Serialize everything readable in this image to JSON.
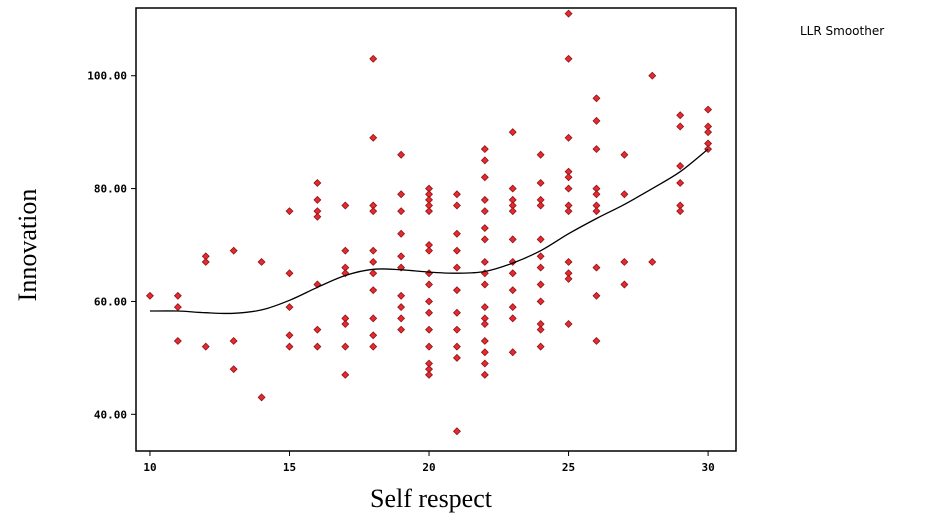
{
  "chart_data": {
    "type": "scatter",
    "title": "",
    "xlabel": "Self respect",
    "ylabel": "Innovation",
    "xlim": [
      9.5,
      31.0
    ],
    "ylim": [
      33.5,
      112.0
    ],
    "x_ticks": [
      10,
      15,
      20,
      25,
      30
    ],
    "x_tick_labels": [
      "10",
      "15",
      "20",
      "25",
      "30"
    ],
    "y_ticks": [
      40,
      60,
      80,
      100
    ],
    "y_tick_labels": [
      "40.00",
      "60.00",
      "80.00",
      "100.00"
    ],
    "legend": {
      "label": "LLR Smoother",
      "placement": "top-right"
    },
    "grid": false,
    "colors": {
      "points": "#e8292e",
      "point_edge": "#8a1418",
      "line": "#000000"
    },
    "points": [
      [
        10,
        61
      ],
      [
        11,
        61
      ],
      [
        11,
        59
      ],
      [
        11,
        53
      ],
      [
        12,
        68
      ],
      [
        12,
        67
      ],
      [
        12,
        52
      ],
      [
        13,
        69
      ],
      [
        13,
        53
      ],
      [
        13,
        48
      ],
      [
        14,
        67
      ],
      [
        14,
        43
      ],
      [
        15,
        76
      ],
      [
        15,
        65
      ],
      [
        15,
        59
      ],
      [
        15,
        54
      ],
      [
        15,
        52
      ],
      [
        16,
        81
      ],
      [
        16,
        78
      ],
      [
        16,
        76
      ],
      [
        16,
        75
      ],
      [
        16,
        63
      ],
      [
        16,
        55
      ],
      [
        16,
        52
      ],
      [
        17,
        77
      ],
      [
        17,
        69
      ],
      [
        17,
        66
      ],
      [
        17,
        65
      ],
      [
        17,
        57
      ],
      [
        17,
        56
      ],
      [
        17,
        52
      ],
      [
        17,
        47
      ],
      [
        18,
        103
      ],
      [
        18,
        89
      ],
      [
        18,
        77
      ],
      [
        18,
        76
      ],
      [
        18,
        69
      ],
      [
        18,
        67
      ],
      [
        18,
        65
      ],
      [
        18,
        62
      ],
      [
        18,
        57
      ],
      [
        18,
        54
      ],
      [
        18,
        52
      ],
      [
        19,
        86
      ],
      [
        19,
        79
      ],
      [
        19,
        76
      ],
      [
        19,
        72
      ],
      [
        19,
        68
      ],
      [
        19,
        66
      ],
      [
        19,
        61
      ],
      [
        19,
        59
      ],
      [
        19,
        57
      ],
      [
        19,
        55
      ],
      [
        20,
        80
      ],
      [
        20,
        79
      ],
      [
        20,
        78
      ],
      [
        20,
        77
      ],
      [
        20,
        76
      ],
      [
        20,
        70
      ],
      [
        20,
        69
      ],
      [
        20,
        65
      ],
      [
        20,
        63
      ],
      [
        20,
        60
      ],
      [
        20,
        58
      ],
      [
        20,
        55
      ],
      [
        20,
        52
      ],
      [
        20,
        49
      ],
      [
        20,
        48
      ],
      [
        20,
        47
      ],
      [
        21,
        79
      ],
      [
        21,
        77
      ],
      [
        21,
        72
      ],
      [
        21,
        69
      ],
      [
        21,
        66
      ],
      [
        21,
        62
      ],
      [
        21,
        58
      ],
      [
        21,
        55
      ],
      [
        21,
        52
      ],
      [
        21,
        50
      ],
      [
        21,
        37
      ],
      [
        22,
        87
      ],
      [
        22,
        85
      ],
      [
        22,
        82
      ],
      [
        22,
        78
      ],
      [
        22,
        76
      ],
      [
        22,
        73
      ],
      [
        22,
        71
      ],
      [
        22,
        67
      ],
      [
        22,
        65
      ],
      [
        22,
        63
      ],
      [
        22,
        59
      ],
      [
        22,
        57
      ],
      [
        22,
        56
      ],
      [
        22,
        53
      ],
      [
        22,
        51
      ],
      [
        22,
        49
      ],
      [
        22,
        47
      ],
      [
        23,
        90
      ],
      [
        23,
        80
      ],
      [
        23,
        78
      ],
      [
        23,
        77
      ],
      [
        23,
        76
      ],
      [
        23,
        71
      ],
      [
        23,
        67
      ],
      [
        23,
        65
      ],
      [
        23,
        62
      ],
      [
        23,
        59
      ],
      [
        23,
        57
      ],
      [
        23,
        51
      ],
      [
        24,
        86
      ],
      [
        24,
        81
      ],
      [
        24,
        78
      ],
      [
        24,
        77
      ],
      [
        24,
        71
      ],
      [
        24,
        68
      ],
      [
        24,
        66
      ],
      [
        24,
        63
      ],
      [
        24,
        60
      ],
      [
        24,
        56
      ],
      [
        24,
        55
      ],
      [
        24,
        52
      ],
      [
        25,
        111
      ],
      [
        25,
        103
      ],
      [
        25,
        89
      ],
      [
        25,
        83
      ],
      [
        25,
        82
      ],
      [
        25,
        80
      ],
      [
        25,
        77
      ],
      [
        25,
        76
      ],
      [
        25,
        67
      ],
      [
        25,
        65
      ],
      [
        25,
        64
      ],
      [
        25,
        56
      ],
      [
        26,
        96
      ],
      [
        26,
        92
      ],
      [
        26,
        87
      ],
      [
        26,
        80
      ],
      [
        26,
        79
      ],
      [
        26,
        77
      ],
      [
        26,
        76
      ],
      [
        26,
        66
      ],
      [
        26,
        61
      ],
      [
        26,
        53
      ],
      [
        27,
        86
      ],
      [
        27,
        79
      ],
      [
        27,
        67
      ],
      [
        27,
        63
      ],
      [
        28,
        100
      ],
      [
        28,
        67
      ],
      [
        29,
        93
      ],
      [
        29,
        91
      ],
      [
        29,
        84
      ],
      [
        29,
        81
      ],
      [
        29,
        77
      ],
      [
        29,
        76
      ],
      [
        30,
        94
      ],
      [
        30,
        91
      ],
      [
        30,
        90
      ],
      [
        30,
        88
      ],
      [
        30,
        87
      ]
    ],
    "smoother": [
      [
        10,
        58.3
      ],
      [
        11,
        58.3
      ],
      [
        12,
        58.0
      ],
      [
        13,
        57.9
      ],
      [
        14,
        58.5
      ],
      [
        15,
        60.2
      ],
      [
        16,
        62.5
      ],
      [
        17,
        64.6
      ],
      [
        18,
        65.7
      ],
      [
        19,
        65.6
      ],
      [
        20,
        65.2
      ],
      [
        21,
        65.0
      ],
      [
        22,
        65.3
      ],
      [
        23,
        66.8
      ],
      [
        24,
        69.0
      ],
      [
        25,
        72.0
      ],
      [
        26,
        74.7
      ],
      [
        27,
        77.2
      ],
      [
        28,
        80.0
      ],
      [
        29,
        83.0
      ],
      [
        30,
        87.0
      ]
    ]
  }
}
